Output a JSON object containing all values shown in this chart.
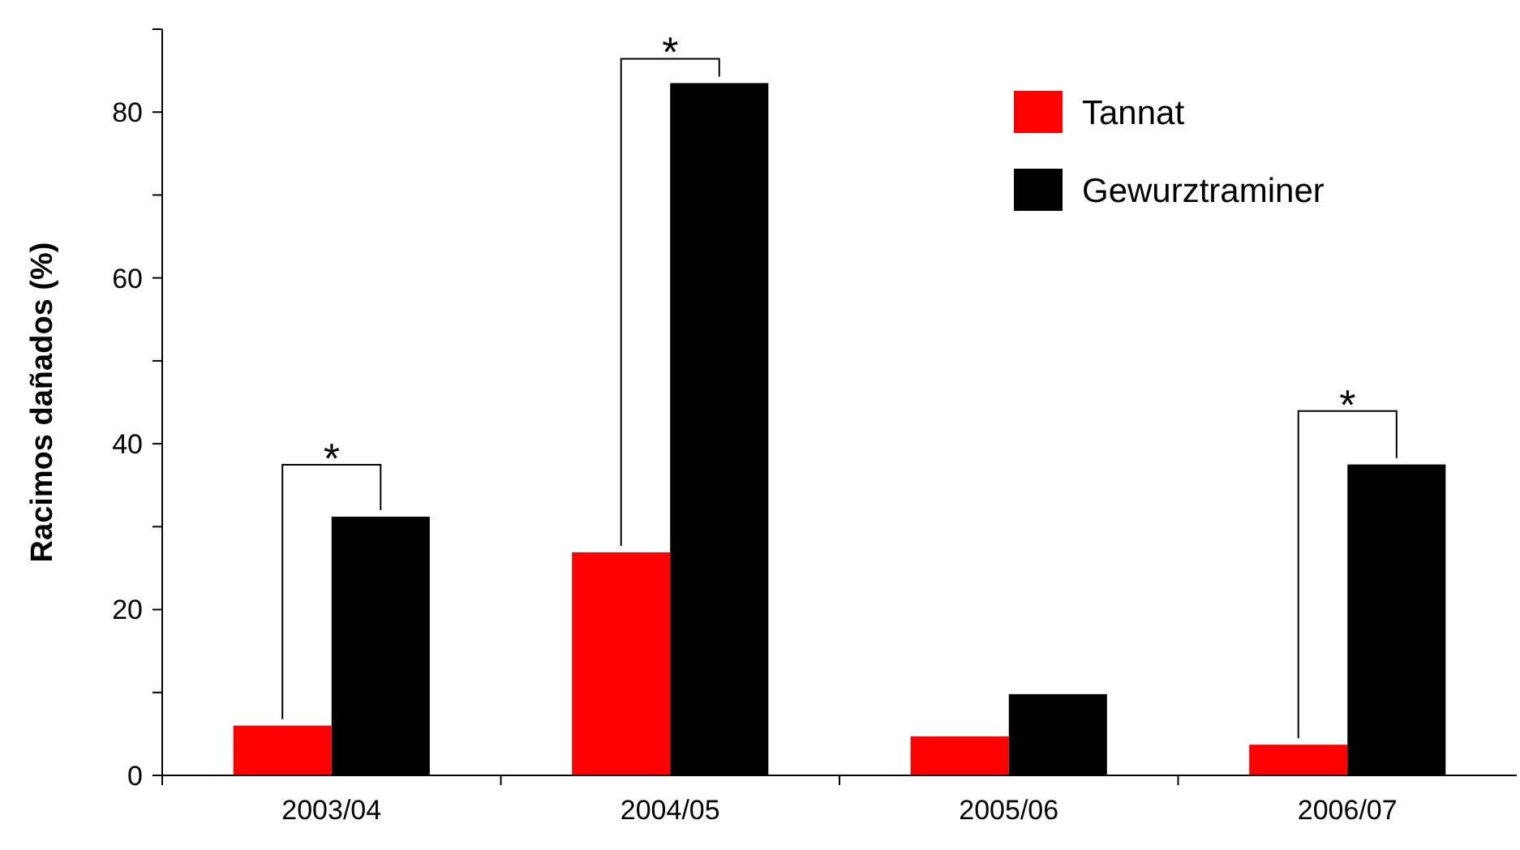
{
  "chart_data": {
    "type": "bar",
    "ylabel": "Racimos dañados (%)",
    "categories": [
      "2003/04",
      "2004/05",
      "2005/06",
      "2006/07"
    ],
    "series": [
      {
        "name": "Tannat",
        "color": "#ff0000",
        "values": [
          6,
          26.9,
          4.7,
          3.7
        ]
      },
      {
        "name": "Gewurztraminer",
        "color": "#000000",
        "values": [
          31.2,
          83.5,
          9.8,
          37.5
        ]
      }
    ],
    "ylim": [
      0,
      90
    ],
    "yticks": [
      0,
      {
        "value": 10,
        "label": null
      },
      20,
      {
        "value": 30,
        "label": null
      },
      40,
      {
        "value": 50,
        "label": null
      },
      60,
      {
        "value": 70,
        "label": null
      },
      80,
      {
        "value": 90,
        "label": null
      }
    ],
    "annotations": [
      {
        "text": "*",
        "x": "2003/04",
        "y": 31.2
      },
      {
        "text": "*",
        "x": "2004/05",
        "y": 83.5
      },
      {
        "text": "*",
        "x": "2006/07",
        "y": 37.5
      }
    ],
    "legend": "top right",
    "grid": false
  }
}
